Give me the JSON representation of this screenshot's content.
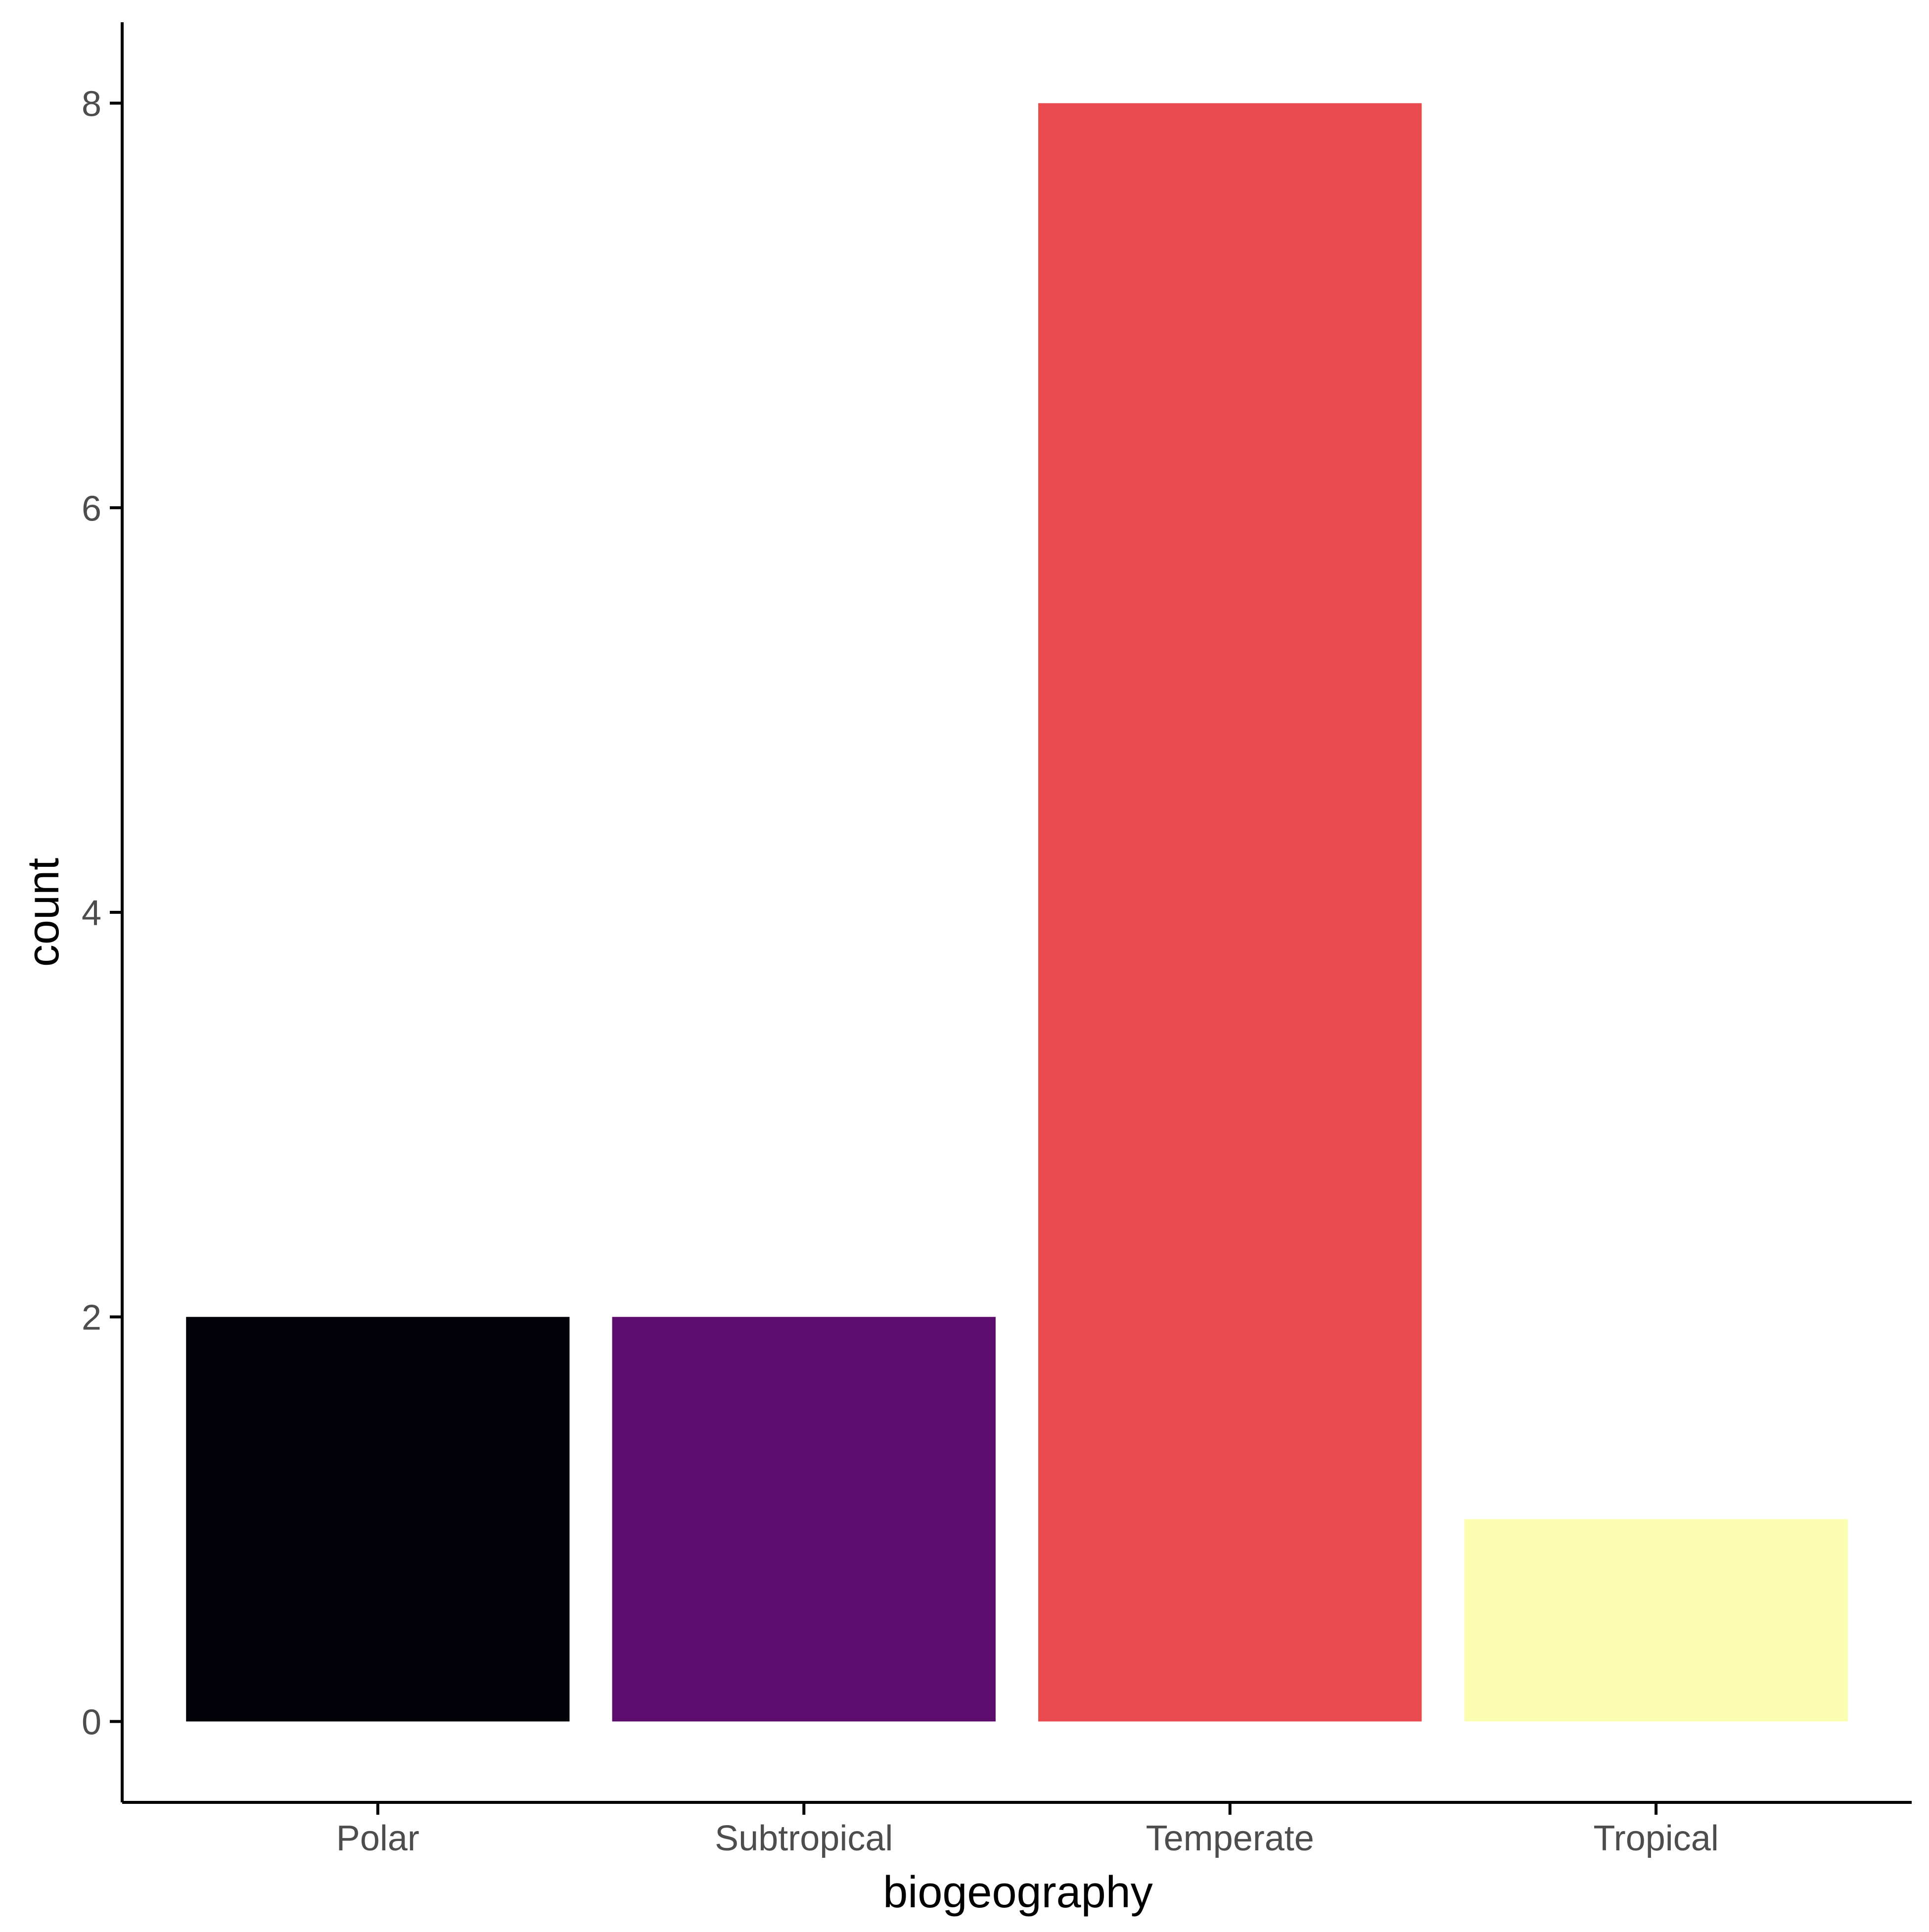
{
  "chart_data": {
    "type": "bar",
    "xlabel": "biogeography",
    "ylabel": "count",
    "categories": [
      "Polar",
      "Subtropical",
      "Temperate",
      "Tropical"
    ],
    "values": [
      2,
      2,
      8,
      1
    ],
    "colors": [
      "#030208",
      "#5c0c6c",
      "#e94a4d",
      "#fbfdb0"
    ],
    "ylim": [
      -0.4,
      8.4
    ],
    "yticks": [
      0,
      2,
      4,
      6,
      8
    ],
    "grid": false,
    "legend": "none"
  },
  "style": {
    "axis_color": "#000000",
    "tick_label_color": "#4d4d4d",
    "background": "#ffffff"
  }
}
